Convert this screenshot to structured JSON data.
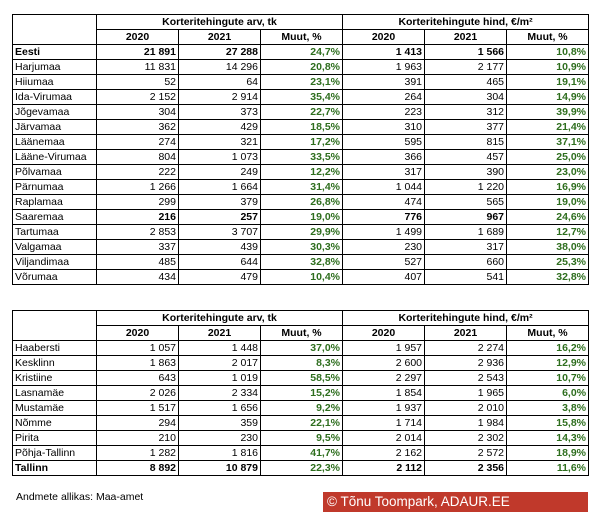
{
  "table1": {
    "group_left": "Korteritehingute arv, tk",
    "group_right": "Korteritehingute hind, €/m²",
    "col_headers": [
      "2020",
      "2021",
      "Muut, %",
      "2020",
      "2021",
      "Muut, %"
    ],
    "rows": [
      {
        "name": "Eesti",
        "v": [
          "21 891",
          "27 288",
          "24,7%",
          "1 413",
          "1 566",
          "10,8%"
        ],
        "bold": true
      },
      {
        "name": "Harjumaa",
        "v": [
          "11 831",
          "14 296",
          "20,8%",
          "1 963",
          "2 177",
          "10,9%"
        ]
      },
      {
        "name": "Hiiumaa",
        "v": [
          "52",
          "64",
          "23,1%",
          "391",
          "465",
          "19,1%"
        ]
      },
      {
        "name": "Ida-Virumaa",
        "v": [
          "2 152",
          "2 914",
          "35,4%",
          "264",
          "304",
          "14,9%"
        ]
      },
      {
        "name": "Jõgevamaa",
        "v": [
          "304",
          "373",
          "22,7%",
          "223",
          "312",
          "39,9%"
        ]
      },
      {
        "name": "Järvamaa",
        "v": [
          "362",
          "429",
          "18,5%",
          "310",
          "377",
          "21,4%"
        ]
      },
      {
        "name": "Läänemaa",
        "v": [
          "274",
          "321",
          "17,2%",
          "595",
          "815",
          "37,1%"
        ]
      },
      {
        "name": "Lääne-Virumaa",
        "v": [
          "804",
          "1 073",
          "33,5%",
          "366",
          "457",
          "25,0%"
        ]
      },
      {
        "name": "Põlvamaa",
        "v": [
          "222",
          "249",
          "12,2%",
          "317",
          "390",
          "23,0%"
        ]
      },
      {
        "name": "Pärnumaa",
        "v": [
          "1 266",
          "1 664",
          "31,4%",
          "1 044",
          "1 220",
          "16,9%"
        ]
      },
      {
        "name": "Raplamaa",
        "v": [
          "299",
          "379",
          "26,8%",
          "474",
          "565",
          "19,0%"
        ]
      },
      {
        "name": "Saaremaa",
        "v": [
          "216",
          "257",
          "19,0%",
          "776",
          "967",
          "24,6%"
        ],
        "bold_nums": true
      },
      {
        "name": "Tartumaa",
        "v": [
          "2 853",
          "3 707",
          "29,9%",
          "1 499",
          "1 689",
          "12,7%"
        ]
      },
      {
        "name": "Valgamaa",
        "v": [
          "337",
          "439",
          "30,3%",
          "230",
          "317",
          "38,0%"
        ]
      },
      {
        "name": "Viljandimaa",
        "v": [
          "485",
          "644",
          "32,8%",
          "527",
          "660",
          "25,3%"
        ]
      },
      {
        "name": "Võrumaa",
        "v": [
          "434",
          "479",
          "10,4%",
          "407",
          "541",
          "32,8%"
        ]
      }
    ]
  },
  "table2": {
    "group_left": "Korteritehingute arv, tk",
    "group_right": "Korteritehingute hind, €/m²",
    "col_headers": [
      "2020",
      "2021",
      "Muut, %",
      "2020",
      "2021",
      "Muut, %"
    ],
    "rows": [
      {
        "name": "Haabersti",
        "v": [
          "1 057",
          "1 448",
          "37,0%",
          "1 957",
          "2 274",
          "16,2%"
        ]
      },
      {
        "name": "Kesklinn",
        "v": [
          "1 863",
          "2 017",
          "8,3%",
          "2 600",
          "2 936",
          "12,9%"
        ]
      },
      {
        "name": "Kristiine",
        "v": [
          "643",
          "1 019",
          "58,5%",
          "2 297",
          "2 543",
          "10,7%"
        ]
      },
      {
        "name": "Lasnamäe",
        "v": [
          "2 026",
          "2 334",
          "15,2%",
          "1 854",
          "1 965",
          "6,0%"
        ]
      },
      {
        "name": "Mustamäe",
        "v": [
          "1 517",
          "1 656",
          "9,2%",
          "1 937",
          "2 010",
          "3,8%"
        ]
      },
      {
        "name": "Nõmme",
        "v": [
          "294",
          "359",
          "22,1%",
          "1 714",
          "1 984",
          "15,8%"
        ]
      },
      {
        "name": "Pirita",
        "v": [
          "210",
          "230",
          "9,5%",
          "2 014",
          "2 302",
          "14,3%"
        ]
      },
      {
        "name": "Põhja-Tallinn",
        "v": [
          "1 282",
          "1 816",
          "41,7%",
          "2 162",
          "2 572",
          "18,9%"
        ]
      },
      {
        "name": "Tallinn",
        "v": [
          "8 892",
          "10 879",
          "22,3%",
          "2 112",
          "2 356",
          "11,6%"
        ],
        "bold": true
      }
    ]
  },
  "source_note": "Andmete allikas: Maa-amet",
  "copyright": "© Tõnu Toompark, ADAUR.EE",
  "colors": {
    "pct_green": "#2e6e1e",
    "copyright_bg": "#c0392b"
  }
}
